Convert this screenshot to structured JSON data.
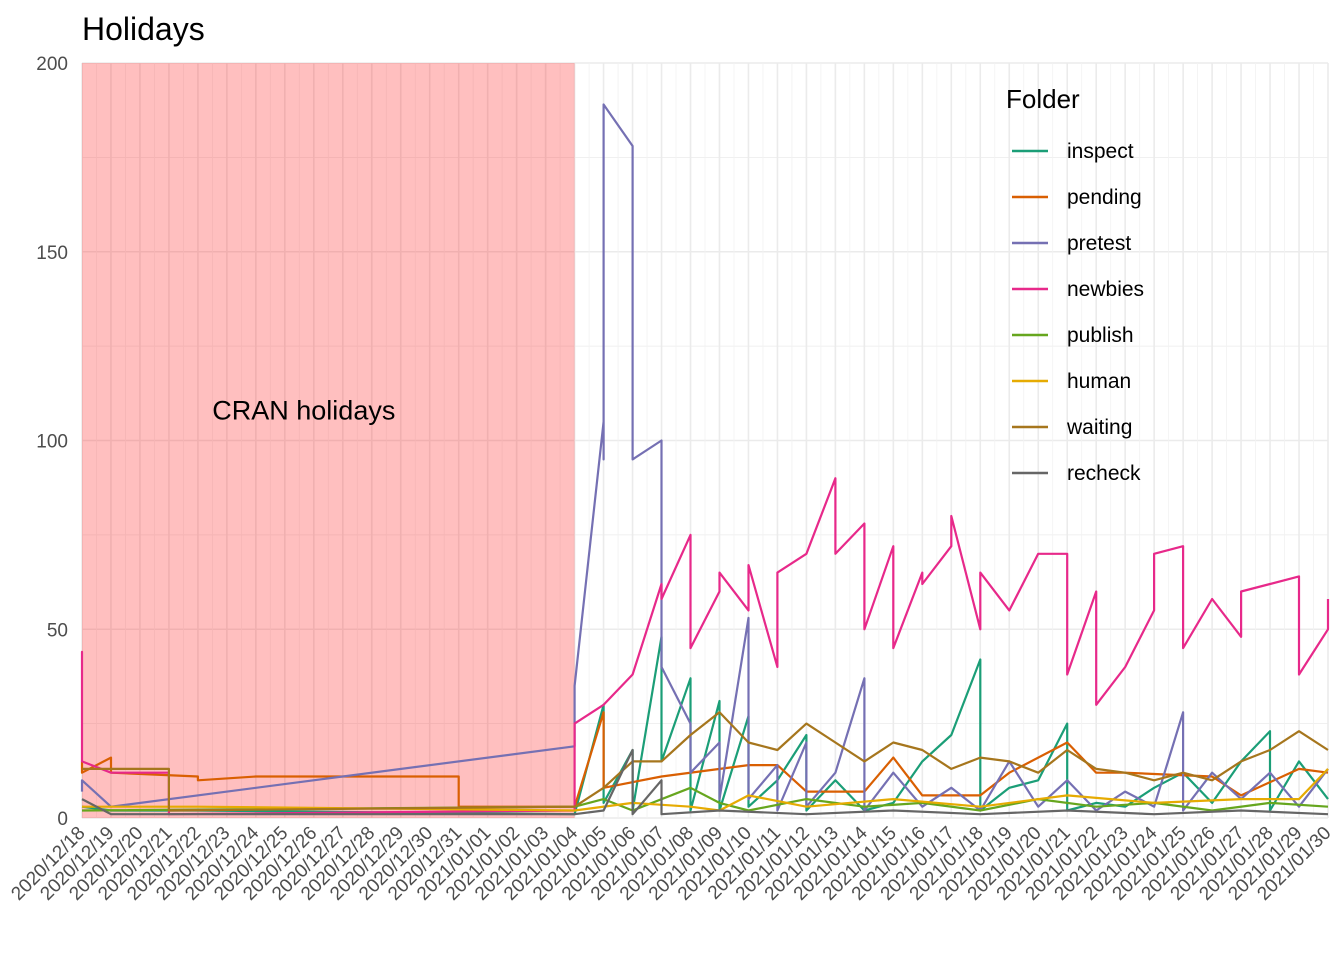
{
  "chart_data": {
    "type": "line",
    "title": "Holidays",
    "xlabel": "",
    "ylabel": "",
    "ylim": [
      0,
      200
    ],
    "yticks": [
      "0",
      "50",
      "100",
      "150",
      "200"
    ],
    "x_start": "2020/12/18",
    "x_end": "2021/01/30",
    "x_tick_labels": [
      "2020/12/18",
      "2020/12/19",
      "2020/12/20",
      "2020/12/21",
      "2020/12/22",
      "2020/12/23",
      "2020/12/24",
      "2020/12/25",
      "2020/12/26",
      "2020/12/27",
      "2020/12/28",
      "2020/12/29",
      "2020/12/30",
      "2020/12/31",
      "2021/01/01",
      "2021/01/02",
      "2021/01/03",
      "2021/01/04",
      "2021/01/05",
      "2021/01/06",
      "2021/01/07",
      "2021/01/08",
      "2021/01/09",
      "2021/01/10",
      "2021/01/11",
      "2021/01/12",
      "2021/01/13",
      "2021/01/14",
      "2021/01/15",
      "2021/01/16",
      "2021/01/17",
      "2021/01/18",
      "2021/01/19",
      "2021/01/20",
      "2021/01/21",
      "2021/01/22",
      "2021/01/23",
      "2021/01/24",
      "2021/01/25",
      "2021/01/26",
      "2021/01/27",
      "2021/01/28",
      "2021/01/29",
      "2021/01/30"
    ],
    "shaded_region": {
      "from": "2020/12/18",
      "to": "2021/01/04",
      "color": "#ff0000",
      "opacity": 0.25
    },
    "annotation": {
      "text": "CRAN holidays",
      "x": "2020/12/26",
      "y": 105
    },
    "grid": true,
    "legend": {
      "title": "Folder",
      "position": "top-right"
    },
    "series": [
      {
        "name": "inspect",
        "color": "#1b9e77",
        "points": [
          [
            "2020/12/18",
            3
          ],
          [
            "2020/12/19",
            2
          ],
          [
            "2020/12/22",
            2
          ],
          [
            "2021/01/04",
            1
          ],
          [
            "2021/01/05",
            30
          ],
          [
            "2021/01/05",
            4
          ],
          [
            "2021/01/06",
            18
          ],
          [
            "2021/01/06",
            2
          ],
          [
            "2021/01/07",
            48
          ],
          [
            "2021/01/07",
            15
          ],
          [
            "2021/01/08",
            37
          ],
          [
            "2021/01/08",
            2
          ],
          [
            "2021/01/09",
            31
          ],
          [
            "2021/01/09",
            2
          ],
          [
            "2021/01/10",
            27
          ],
          [
            "2021/01/10",
            3
          ],
          [
            "2021/01/11",
            10
          ],
          [
            "2021/01/12",
            22
          ],
          [
            "2021/01/12",
            2
          ],
          [
            "2021/01/13",
            10
          ],
          [
            "2021/01/14",
            2
          ],
          [
            "2021/01/15",
            4
          ],
          [
            "2021/01/16",
            15
          ],
          [
            "2021/01/17",
            22
          ],
          [
            "2021/01/18",
            42
          ],
          [
            "2021/01/18",
            2
          ],
          [
            "2021/01/19",
            8
          ],
          [
            "2021/01/20",
            10
          ],
          [
            "2021/01/21",
            25
          ],
          [
            "2021/01/21",
            2
          ],
          [
            "2021/01/22",
            4
          ],
          [
            "2021/01/23",
            3
          ],
          [
            "2021/01/24",
            8
          ],
          [
            "2021/01/25",
            12
          ],
          [
            "2021/01/26",
            4
          ],
          [
            "2021/01/27",
            15
          ],
          [
            "2021/01/28",
            23
          ],
          [
            "2021/01/28",
            2
          ],
          [
            "2021/01/29",
            15
          ],
          [
            "2021/01/30",
            5
          ]
        ]
      },
      {
        "name": "pending",
        "color": "#d95f02",
        "points": [
          [
            "2020/12/18",
            15
          ],
          [
            "2020/12/18",
            12
          ],
          [
            "2020/12/19",
            16
          ],
          [
            "2020/12/19",
            12
          ],
          [
            "2020/12/22",
            11
          ],
          [
            "2020/12/22",
            10
          ],
          [
            "2020/12/24",
            11
          ],
          [
            "2020/12/31",
            11
          ],
          [
            "2020/12/31",
            3
          ],
          [
            "2021/01/04",
            3
          ],
          [
            "2021/01/05",
            28
          ],
          [
            "2021/01/05",
            8
          ],
          [
            "2021/01/07",
            11
          ],
          [
            "2021/01/10",
            14
          ],
          [
            "2021/01/11",
            14
          ],
          [
            "2021/01/12",
            7
          ],
          [
            "2021/01/14",
            7
          ],
          [
            "2021/01/15",
            16
          ],
          [
            "2021/01/16",
            6
          ],
          [
            "2021/01/18",
            6
          ],
          [
            "2021/01/19",
            12
          ],
          [
            "2021/01/21",
            20
          ],
          [
            "2021/01/22",
            12
          ],
          [
            "2021/01/23",
            12
          ],
          [
            "2021/01/26",
            11
          ],
          [
            "2021/01/27",
            6
          ],
          [
            "2021/01/29",
            13
          ],
          [
            "2021/01/30",
            12
          ]
        ]
      },
      {
        "name": "pretest",
        "color": "#7570b3",
        "points": [
          [
            "2020/12/18",
            7
          ],
          [
            "2020/12/18",
            10
          ],
          [
            "2020/12/19",
            3
          ],
          [
            "2021/01/04",
            19
          ],
          [
            "2021/01/04",
            35
          ],
          [
            "2021/01/05",
            105
          ],
          [
            "2021/01/05",
            95
          ],
          [
            "2021/01/05",
            150
          ],
          [
            "2021/01/05",
            189
          ],
          [
            "2021/01/06",
            178
          ],
          [
            "2021/01/06",
            160
          ],
          [
            "2021/01/06",
            165
          ],
          [
            "2021/01/06",
            150
          ],
          [
            "2021/01/06",
            120
          ],
          [
            "2021/01/06",
            95
          ],
          [
            "2021/01/07",
            100
          ],
          [
            "2021/01/07",
            88
          ],
          [
            "2021/01/07",
            98
          ],
          [
            "2021/01/07",
            40
          ],
          [
            "2021/01/08",
            25
          ],
          [
            "2021/01/08",
            12
          ],
          [
            "2021/01/09",
            20
          ],
          [
            "2021/01/09",
            5
          ],
          [
            "2021/01/10",
            53
          ],
          [
            "2021/01/10",
            5
          ],
          [
            "2021/01/11",
            14
          ],
          [
            "2021/01/11",
            2
          ],
          [
            "2021/01/12",
            20
          ],
          [
            "2021/01/12",
            3
          ],
          [
            "2021/01/13",
            12
          ],
          [
            "2021/01/14",
            37
          ],
          [
            "2021/01/14",
            2
          ],
          [
            "2021/01/15",
            12
          ],
          [
            "2021/01/16",
            3
          ],
          [
            "2021/01/17",
            8
          ],
          [
            "2021/01/18",
            2
          ],
          [
            "2021/01/19",
            15
          ],
          [
            "2021/01/20",
            3
          ],
          [
            "2021/01/21",
            10
          ],
          [
            "2021/01/22",
            2
          ],
          [
            "2021/01/23",
            7
          ],
          [
            "2021/01/24",
            3
          ],
          [
            "2021/01/25",
            28
          ],
          [
            "2021/01/25",
            2
          ],
          [
            "2021/01/26",
            12
          ],
          [
            "2021/01/27",
            5
          ],
          [
            "2021/01/28",
            12
          ],
          [
            "2021/01/29",
            3
          ],
          [
            "2021/01/30",
            13
          ]
        ]
      },
      {
        "name": "newbies",
        "color": "#e7298a",
        "points": [
          [
            "2020/12/18",
            38
          ],
          [
            "2020/12/18",
            44
          ],
          [
            "2020/12/18",
            15
          ],
          [
            "2020/12/19",
            12
          ],
          [
            "2020/12/21",
            12
          ],
          [
            "2020/12/21",
            1
          ],
          [
            "2021/01/04",
            2
          ],
          [
            "2021/01/04",
            25
          ],
          [
            "2021/01/05",
            30
          ],
          [
            "2021/01/06",
            38
          ],
          [
            "2021/01/07",
            62
          ],
          [
            "2021/01/07",
            58
          ],
          [
            "2021/01/08",
            75
          ],
          [
            "2021/01/08",
            45
          ],
          [
            "2021/01/09",
            60
          ],
          [
            "2021/01/09",
            65
          ],
          [
            "2021/01/10",
            55
          ],
          [
            "2021/01/10",
            67
          ],
          [
            "2021/01/11",
            40
          ],
          [
            "2021/01/11",
            65
          ],
          [
            "2021/01/12",
            70
          ],
          [
            "2021/01/13",
            90
          ],
          [
            "2021/01/13",
            70
          ],
          [
            "2021/01/14",
            78
          ],
          [
            "2021/01/14",
            50
          ],
          [
            "2021/01/15",
            72
          ],
          [
            "2021/01/15",
            45
          ],
          [
            "2021/01/16",
            65
          ],
          [
            "2021/01/16",
            62
          ],
          [
            "2021/01/17",
            72
          ],
          [
            "2021/01/17",
            80
          ],
          [
            "2021/01/18",
            50
          ],
          [
            "2021/01/18",
            65
          ],
          [
            "2021/01/19",
            55
          ],
          [
            "2021/01/20",
            70
          ],
          [
            "2021/01/21",
            70
          ],
          [
            "2021/01/21",
            38
          ],
          [
            "2021/01/22",
            60
          ],
          [
            "2021/01/22",
            30
          ],
          [
            "2021/01/23",
            40
          ],
          [
            "2021/01/24",
            55
          ],
          [
            "2021/01/24",
            70
          ],
          [
            "2021/01/25",
            72
          ],
          [
            "2021/01/25",
            45
          ],
          [
            "2021/01/26",
            58
          ],
          [
            "2021/01/27",
            48
          ],
          [
            "2021/01/27",
            60
          ],
          [
            "2021/01/28",
            62
          ],
          [
            "2021/01/29",
            64
          ],
          [
            "2021/01/29",
            38
          ],
          [
            "2021/01/30",
            50
          ],
          [
            "2021/01/30",
            58
          ]
        ]
      },
      {
        "name": "publish",
        "color": "#66a61e",
        "points": [
          [
            "2020/12/18",
            2
          ],
          [
            "2021/01/04",
            3
          ],
          [
            "2021/01/05",
            5
          ],
          [
            "2021/01/06",
            2
          ],
          [
            "2021/01/08",
            8
          ],
          [
            "2021/01/09",
            4
          ],
          [
            "2021/01/10",
            2
          ],
          [
            "2021/01/12",
            5
          ],
          [
            "2021/01/14",
            3
          ],
          [
            "2021/01/16",
            4
          ],
          [
            "2021/01/18",
            2
          ],
          [
            "2021/01/20",
            5
          ],
          [
            "2021/01/22",
            3
          ],
          [
            "2021/01/24",
            4
          ],
          [
            "2021/01/26",
            2
          ],
          [
            "2021/01/28",
            4
          ],
          [
            "2021/01/30",
            3
          ]
        ]
      },
      {
        "name": "human",
        "color": "#e6ab02",
        "points": [
          [
            "2020/12/18",
            3
          ],
          [
            "2020/12/22",
            3
          ],
          [
            "2021/01/04",
            2
          ],
          [
            "2021/01/06",
            4
          ],
          [
            "2021/01/08",
            3
          ],
          [
            "2021/01/09",
            2
          ],
          [
            "2021/01/10",
            6
          ],
          [
            "2021/01/12",
            3
          ],
          [
            "2021/01/15",
            5
          ],
          [
            "2021/01/18",
            3
          ],
          [
            "2021/01/21",
            6
          ],
          [
            "2021/01/24",
            4
          ],
          [
            "2021/01/27",
            5
          ],
          [
            "2021/01/29",
            5
          ],
          [
            "2021/01/30",
            13
          ]
        ]
      },
      {
        "name": "waiting",
        "color": "#a6761d",
        "points": [
          [
            "2020/12/18",
            13
          ],
          [
            "2020/12/21",
            13
          ],
          [
            "2020/12/21",
            2
          ],
          [
            "2021/01/04",
            3
          ],
          [
            "2021/01/05",
            8
          ],
          [
            "2021/01/06",
            15
          ],
          [
            "2021/01/07",
            15
          ],
          [
            "2021/01/08",
            22
          ],
          [
            "2021/01/09",
            28
          ],
          [
            "2021/01/10",
            20
          ],
          [
            "2021/01/11",
            18
          ],
          [
            "2021/01/12",
            25
          ],
          [
            "2021/01/13",
            20
          ],
          [
            "2021/01/14",
            15
          ],
          [
            "2021/01/15",
            20
          ],
          [
            "2021/01/16",
            18
          ],
          [
            "2021/01/17",
            13
          ],
          [
            "2021/01/18",
            16
          ],
          [
            "2021/01/19",
            15
          ],
          [
            "2021/01/20",
            12
          ],
          [
            "2021/01/21",
            18
          ],
          [
            "2021/01/22",
            13
          ],
          [
            "2021/01/23",
            12
          ],
          [
            "2021/01/24",
            10
          ],
          [
            "2021/01/25",
            12
          ],
          [
            "2021/01/26",
            10
          ],
          [
            "2021/01/27",
            15
          ],
          [
            "2021/01/28",
            18
          ],
          [
            "2021/01/29",
            23
          ],
          [
            "2021/01/30",
            18
          ]
        ]
      },
      {
        "name": "recheck",
        "color": "#666666",
        "points": [
          [
            "2020/12/18",
            5
          ],
          [
            "2020/12/19",
            1
          ],
          [
            "2021/01/04",
            1
          ],
          [
            "2021/01/05",
            2
          ],
          [
            "2021/01/06",
            18
          ],
          [
            "2021/01/06",
            1
          ],
          [
            "2021/01/07",
            10
          ],
          [
            "2021/01/07",
            1
          ],
          [
            "2021/01/09",
            2
          ],
          [
            "2021/01/12",
            1
          ],
          [
            "2021/01/15",
            2
          ],
          [
            "2021/01/18",
            1
          ],
          [
            "2021/01/21",
            2
          ],
          [
            "2021/01/24",
            1
          ],
          [
            "2021/01/27",
            2
          ],
          [
            "2021/01/30",
            1
          ]
        ]
      }
    ]
  }
}
